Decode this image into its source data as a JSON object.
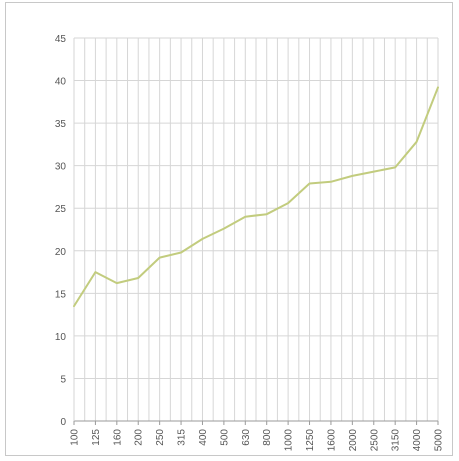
{
  "chart_data": {
    "type": "line",
    "title": "",
    "xlabel": "",
    "ylabel": "",
    "grid": true,
    "ylim": [
      0,
      45
    ],
    "yticks": [
      0,
      5,
      10,
      15,
      20,
      25,
      30,
      35,
      40,
      45
    ],
    "categories": [
      "100",
      "125",
      "160",
      "200",
      "250",
      "315",
      "400",
      "500",
      "630",
      "800",
      "1000",
      "1250",
      "1600",
      "2000",
      "2500",
      "3150",
      "4000",
      "5000"
    ],
    "series": [
      {
        "values": [
          13.5,
          17.5,
          16.2,
          16.8,
          19.2,
          19.8,
          21.4,
          22.6,
          24.0,
          24.3,
          25.6,
          27.9,
          28.1,
          28.8,
          29.3,
          29.8,
          32.8,
          39.2
        ]
      }
    ],
    "colors": {
      "line": "#c2cc7e",
      "grid": "#d6d6d6",
      "axis": "#9a9a9a"
    }
  }
}
